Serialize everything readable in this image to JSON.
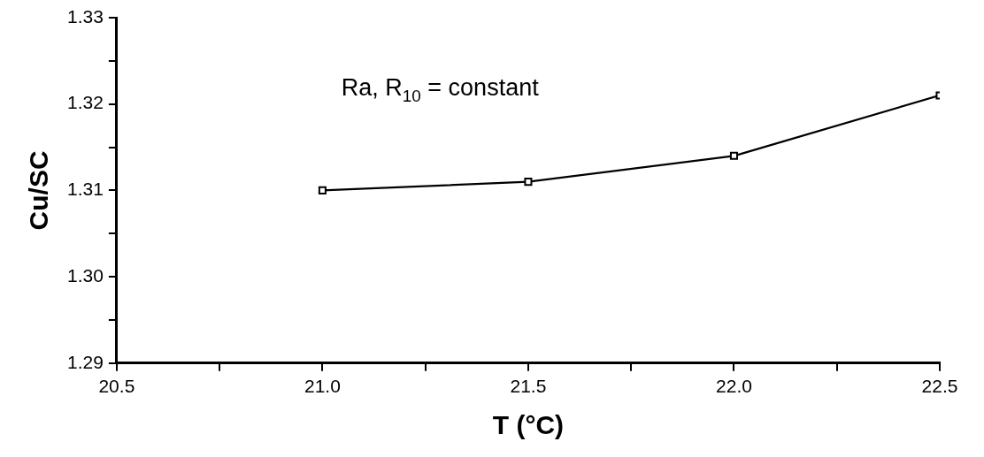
{
  "chart_data": {
    "type": "line",
    "xlabel": "T (°C)",
    "ylabel": "Cu/SC",
    "annotations": [
      "Ra, R$_{10}$ = constant"
    ],
    "x": [
      21.0,
      21.5,
      22.0,
      22.5
    ],
    "series": [
      {
        "color": "#000000",
        "values": [
          1.31,
          1.311,
          1.314,
          1.321
        ]
      }
    ],
    "xlim": [
      20.5,
      22.5
    ],
    "xticks": [
      {
        "value": 20.5,
        "label": "20.5"
      },
      {
        "value": 20.75,
        "label": null
      },
      {
        "value": 21.0,
        "label": "21.0"
      },
      {
        "value": 21.25,
        "label": null
      },
      {
        "value": 21.5,
        "label": "21.5"
      },
      {
        "value": 21.75,
        "label": null
      },
      {
        "value": 22.0,
        "label": "22.0"
      },
      {
        "value": 22.25,
        "label": null
      },
      {
        "value": 22.5,
        "label": "22.5"
      }
    ],
    "ylim": [
      1.29,
      1.33
    ],
    "yticks": [
      1.29,
      {
        "value": 1.295,
        "label": null
      },
      {
        "value": 1.3,
        "label": "1.30"
      },
      {
        "value": 1.305,
        "label": null
      },
      1.31,
      {
        "value": 1.315,
        "label": null
      },
      1.32,
      {
        "value": 1.325,
        "label": null
      },
      1.33
    ],
    "grid": false,
    "legend": false,
    "marker": "square",
    "line_style": "solid"
  }
}
